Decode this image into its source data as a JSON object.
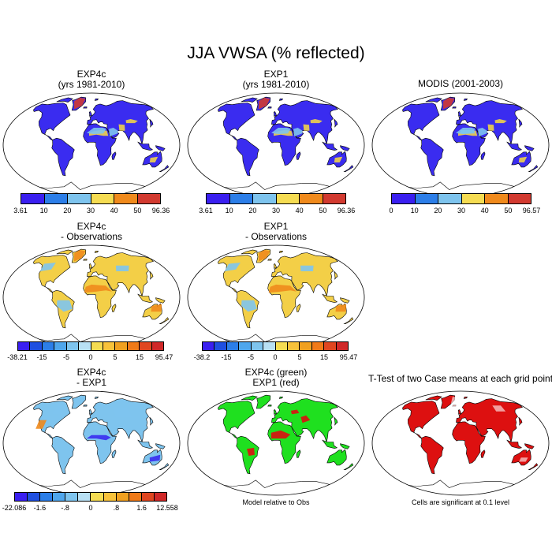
{
  "figure": {
    "title": "JJA VWSA (% reflected)"
  },
  "panels": [
    {
      "id": "p1",
      "title": "EXP4c\n(yrs 1981-2010)",
      "fill": "abs-model",
      "colorbar": {
        "colors": [
          "#3a1ff0",
          "#2c7ee8",
          "#7ec4ee",
          "#f5dc52",
          "#f08a1c",
          "#d23a30"
        ],
        "labels": [
          "3.61",
          "10",
          "20",
          "30",
          "40",
          "50",
          "96.36"
        ]
      }
    },
    {
      "id": "p2",
      "title": "EXP1\n(yrs 1981-2010)",
      "fill": "abs-model",
      "colorbar": {
        "colors": [
          "#3a1ff0",
          "#2c7ee8",
          "#7ec4ee",
          "#f5dc52",
          "#f08a1c",
          "#d23a30"
        ],
        "labels": [
          "3.61",
          "10",
          "20",
          "30",
          "40",
          "50",
          "96.36"
        ]
      }
    },
    {
      "id": "p3",
      "title": "MODIS (2001-2003)",
      "fill": "abs-obs",
      "colorbar": {
        "colors": [
          "#3a1ff0",
          "#2c7ee8",
          "#7ec4ee",
          "#f5dc52",
          "#f08a1c",
          "#d23a30"
        ],
        "labels": [
          "0",
          "10",
          "20",
          "30",
          "40",
          "50",
          "96.57"
        ]
      }
    },
    {
      "id": "p4",
      "title": "EXP4c\n- Observations",
      "fill": "diff-obs",
      "colorbar": {
        "colors": [
          "#3a1ff0",
          "#1f4fe0",
          "#2c7ee8",
          "#4fa6ec",
          "#7ec4ee",
          "#b8e0f4",
          "#f5dc52",
          "#f8c23a",
          "#f0a020",
          "#f07a18",
          "#e04620",
          "#d02828"
        ],
        "labels": [
          "-38.21",
          "-15",
          "-5",
          "0",
          "5",
          "15",
          "95.47"
        ]
      }
    },
    {
      "id": "p5",
      "title": "EXP1\n- Observations",
      "fill": "diff-obs",
      "colorbar": {
        "colors": [
          "#3a1ff0",
          "#1f4fe0",
          "#2c7ee8",
          "#4fa6ec",
          "#7ec4ee",
          "#b8e0f4",
          "#f5dc52",
          "#f8c23a",
          "#f0a020",
          "#f07a18",
          "#e04620",
          "#d02828"
        ],
        "labels": [
          "-38.2",
          "-15",
          "-5",
          "0",
          "5",
          "15",
          "95.47"
        ]
      }
    },
    {
      "id": "p7",
      "title": "EXP4c\n- EXP1",
      "fill": "diff-exp",
      "colorbar": {
        "colors": [
          "#3a1ff0",
          "#1f4fe0",
          "#2c7ee8",
          "#4fa6ec",
          "#7ec4ee",
          "#b8e0f4",
          "#f5dc52",
          "#f8c23a",
          "#f0a020",
          "#f07a18",
          "#e04620",
          "#d02828"
        ],
        "labels": [
          "-22.086",
          "-1.6",
          "-.8",
          "0",
          ".8",
          "1.6",
          "12.558"
        ]
      }
    },
    {
      "id": "p8",
      "title": "EXP4c (green)\nEXP1 (red)",
      "fill": "green-red",
      "note": "Model relative to Obs"
    },
    {
      "id": "p9",
      "title": "T-Test of two Case means at each grid point",
      "fill": "ttest",
      "note": "Cells are significant at 0.1 level"
    }
  ],
  "colors": {
    "ocean": "#ffffff",
    "coast": "#000000",
    "abs_land": "#3a2cf0",
    "abs_desert": "#f0d24a",
    "abs_arid": "#7ec4ee",
    "abs_ice": "#d23a30",
    "diff_land": "#f3cf47",
    "diff_hot": "#f08a1c",
    "diff_cool": "#7ec4ee",
    "green": "#1fe01f",
    "red": "#dd1010"
  }
}
